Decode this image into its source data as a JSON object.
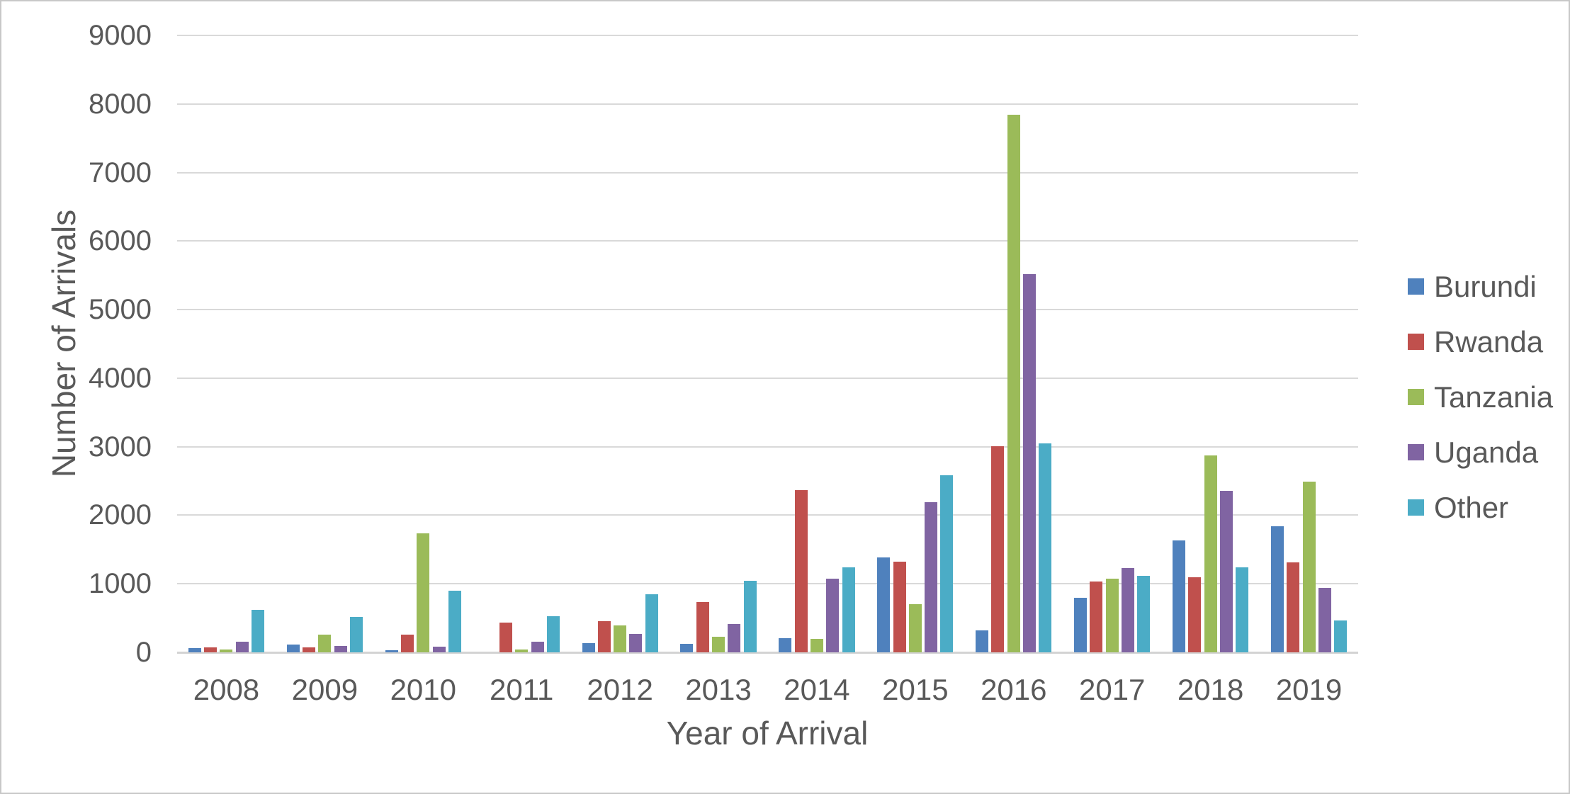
{
  "colors": {
    "text": "#595959",
    "gridline": "#D9D9D9",
    "background": "#FFFFFF",
    "border": "#C8C8C8"
  },
  "chart_data": {
    "type": "bar",
    "title": "",
    "xlabel": "Year of Arrival",
    "ylabel": "Number of Arrivals",
    "categories": [
      "2008",
      "2009",
      "2010",
      "2011",
      "2012",
      "2013",
      "2014",
      "2015",
      "2016",
      "2017",
      "2018",
      "2019"
    ],
    "series": [
      {
        "name": "Burundi",
        "color": "#4F81BD",
        "values": [
          60,
          110,
          30,
          0,
          130,
          120,
          210,
          1380,
          320,
          800,
          1630,
          1840
        ]
      },
      {
        "name": "Rwanda",
        "color": "#C0504D",
        "values": [
          70,
          70,
          260,
          430,
          450,
          730,
          2370,
          1320,
          3010,
          1030,
          1100,
          1310
        ]
      },
      {
        "name": "Tanzania",
        "color": "#9BBB59",
        "values": [
          40,
          260,
          1740,
          40,
          390,
          230,
          200,
          700,
          7840,
          1070,
          2870,
          2490
        ]
      },
      {
        "name": "Uganda",
        "color": "#8064A2",
        "values": [
          150,
          90,
          80,
          160,
          270,
          410,
          1070,
          2190,
          5520,
          1230,
          2360,
          940
        ]
      },
      {
        "name": "Other",
        "color": "#4BACC6",
        "values": [
          620,
          520,
          900,
          530,
          850,
          1040,
          1240,
          2580,
          3050,
          1120,
          1240,
          470
        ]
      }
    ],
    "ylim": [
      0,
      9000
    ],
    "ytick_step": 1000,
    "grid": true,
    "legend_position": "right"
  }
}
